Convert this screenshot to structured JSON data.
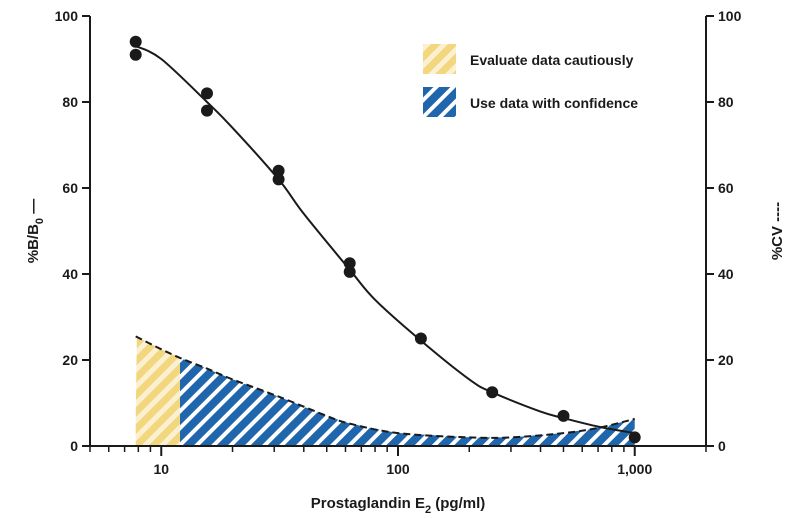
{
  "chart_data": {
    "type": "scatter",
    "x_scale": "log",
    "xlim": [
      5,
      2000
    ],
    "ylim": [
      0,
      100
    ],
    "y2lim": [
      0,
      100
    ],
    "x_ticks": [
      10,
      100,
      1000
    ],
    "x_tick_labels": [
      "10",
      "100",
      "1,000"
    ],
    "y_ticks": [
      0,
      20,
      40,
      60,
      80,
      100
    ],
    "y_tick_labels": [
      "0",
      "20",
      "40",
      "60",
      "80",
      "100"
    ],
    "y2_ticks": [
      0,
      20,
      40,
      60,
      80,
      100
    ],
    "y2_tick_labels": [
      "0",
      "20",
      "40",
      "60",
      "80",
      "100"
    ],
    "xlabel": {
      "main": "Prostaglandin E",
      "sub": "2",
      "rest": " (pg/ml)"
    },
    "ylabel": {
      "main": "%B/B",
      "sub": "0",
      "rest": " —"
    },
    "y2label": "%CV ----",
    "legend": {
      "position": "top-right",
      "items": [
        {
          "label": "Evaluate data cautiously",
          "pattern": "yellow-hatch"
        },
        {
          "label": "Use data with confidence",
          "pattern": "blue-hatch"
        }
      ]
    },
    "series": [
      {
        "kind": "points",
        "axis": "left",
        "x": [
          7.8,
          7.8,
          15.6,
          15.6,
          31.3,
          31.3,
          62.5,
          62.5,
          125,
          250,
          500,
          1000
        ],
        "y": [
          94,
          91,
          82,
          78,
          64,
          62,
          42.5,
          40.5,
          25,
          12.5,
          7,
          2
        ]
      },
      {
        "kind": "fit-curve",
        "axis": "left",
        "x": [
          7.8,
          10,
          15.6,
          20,
          31.3,
          40,
          62.5,
          80,
          125,
          200,
          250,
          400,
          500,
          700,
          1000
        ],
        "y": [
          93,
          90,
          80,
          74,
          62,
          54,
          41,
          34,
          24.5,
          15.5,
          12.5,
          8,
          6.5,
          4.5,
          3
        ]
      },
      {
        "kind": "cv-curve",
        "axis": "right",
        "x": [
          7.8,
          10,
          12,
          15.6,
          20,
          31.3,
          50,
          62.5,
          100,
          200,
          300,
          500,
          700,
          1000
        ],
        "y": [
          25.5,
          22.5,
          20.5,
          18,
          15.5,
          11.5,
          7,
          5.2,
          3,
          2,
          2,
          3,
          4.2,
          6.3
        ]
      }
    ],
    "regions": [
      {
        "label": "Evaluate data cautiously",
        "from": 7.8,
        "to": 12,
        "pattern": "yellow-hatch"
      },
      {
        "label": "Use data with confidence",
        "from": 12,
        "to": 1000,
        "pattern": "blue-hatch"
      }
    ],
    "colors": {
      "yellow": "#f3d77f",
      "blue": "#1f66ad",
      "ink": "#1a1a1a"
    }
  }
}
